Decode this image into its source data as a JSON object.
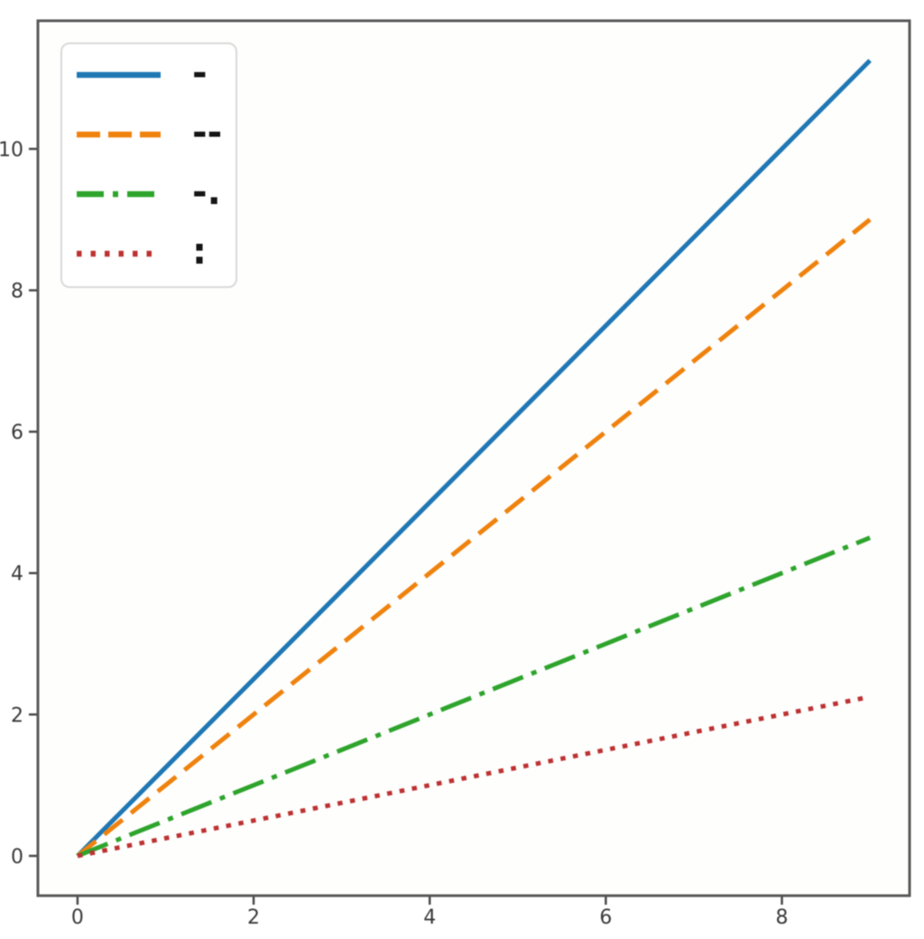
{
  "figure": {
    "background": "#ffffff",
    "plot_background": "#fefefd",
    "spine_color": "#595959",
    "tick_color": "#4a4a4a",
    "tick_label_color": "#3b3b3b"
  },
  "legend": {
    "border_color": "#d9d9d9",
    "background": "#ffffff",
    "position": "upper left"
  },
  "chart_data": {
    "type": "line",
    "title": "",
    "xlabel": "",
    "ylabel": "",
    "grid": false,
    "legend_position": "upper left",
    "x": [
      0,
      1,
      2,
      3,
      4,
      5,
      6,
      7,
      8,
      9
    ],
    "series": [
      {
        "label": "-",
        "linestyle": "solid",
        "color": "#1f77b4",
        "values": [
          0,
          1.25,
          2.5,
          3.75,
          5,
          6.25,
          7.5,
          8.75,
          10,
          11.25
        ]
      },
      {
        "label": "--",
        "linestyle": "dashed",
        "color": "#ef820d",
        "values": [
          0,
          1,
          2,
          3,
          4,
          5,
          6,
          7,
          8,
          9
        ]
      },
      {
        "label": "-.",
        "linestyle": "dashdot",
        "color": "#2ea42c",
        "values": [
          0,
          0.5,
          1,
          1.5,
          2,
          2.5,
          3,
          3.5,
          4,
          4.5
        ]
      },
      {
        "label": ":",
        "linestyle": "dotted",
        "color": "#bd3232",
        "values": [
          0,
          0.25,
          0.5,
          0.75,
          1,
          1.25,
          1.5,
          1.75,
          2,
          2.25
        ]
      }
    ],
    "xticks": [
      0,
      2,
      4,
      6,
      8
    ],
    "yticks": [
      0,
      2,
      4,
      6,
      8,
      10
    ],
    "xlim": [
      -0.45,
      9.45
    ],
    "ylim": [
      -0.5625,
      11.8125
    ]
  }
}
